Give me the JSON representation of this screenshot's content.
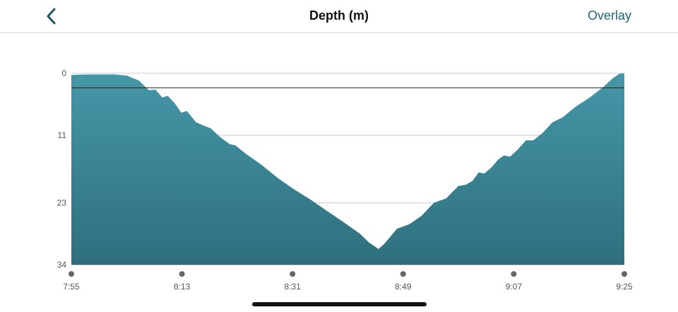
{
  "header": {
    "title": "Depth (m)",
    "overlay_label": "Overlay",
    "back_icon": "chevron-left-icon"
  },
  "colors": {
    "fill_top": "#4597a8",
    "fill_bottom": "#2f6f7d",
    "accent": "#1f6472"
  },
  "chart_data": {
    "type": "area",
    "title": "Depth (m)",
    "y_inverted": true,
    "ylim": [
      0,
      34
    ],
    "y_ticks": [
      "0",
      "11",
      "23",
      "34"
    ],
    "y_tick_values": [
      0,
      11,
      23,
      34
    ],
    "x_ticks": [
      "7:55",
      "8:13",
      "8:31",
      "8:49",
      "9:07",
      "9:25"
    ],
    "x_range_minutes": [
      0,
      90
    ],
    "reference_line_depth": 2.6,
    "grid": true,
    "series": [
      {
        "values": [
          {
            "x": 0.0,
            "y": 0.3
          },
          {
            "x": 3.0,
            "y": 0.2
          },
          {
            "x": 7.0,
            "y": 0.2
          },
          {
            "x": 9.0,
            "y": 0.4
          },
          {
            "x": 11.0,
            "y": 1.3
          },
          {
            "x": 12.6,
            "y": 3.0
          },
          {
            "x": 13.7,
            "y": 2.9
          },
          {
            "x": 14.8,
            "y": 4.3
          },
          {
            "x": 15.7,
            "y": 4.0
          },
          {
            "x": 16.8,
            "y": 5.3
          },
          {
            "x": 17.9,
            "y": 7.0
          },
          {
            "x": 18.8,
            "y": 6.7
          },
          {
            "x": 20.3,
            "y": 8.7
          },
          {
            "x": 21.8,
            "y": 9.4
          },
          {
            "x": 22.7,
            "y": 9.8
          },
          {
            "x": 24.3,
            "y": 11.4
          },
          {
            "x": 25.8,
            "y": 12.6
          },
          {
            "x": 26.7,
            "y": 12.8
          },
          {
            "x": 28.4,
            "y": 14.3
          },
          {
            "x": 30.9,
            "y": 16.2
          },
          {
            "x": 33.6,
            "y": 18.6
          },
          {
            "x": 36.1,
            "y": 20.5
          },
          {
            "x": 38.9,
            "y": 22.4
          },
          {
            "x": 41.7,
            "y": 24.5
          },
          {
            "x": 44.4,
            "y": 26.5
          },
          {
            "x": 47.0,
            "y": 28.5
          },
          {
            "x": 48.4,
            "y": 30.0
          },
          {
            "x": 50.0,
            "y": 31.2
          },
          {
            "x": 51.0,
            "y": 30.2
          },
          {
            "x": 53.0,
            "y": 27.6
          },
          {
            "x": 55.0,
            "y": 26.8
          },
          {
            "x": 57.0,
            "y": 25.3
          },
          {
            "x": 59.0,
            "y": 23.0
          },
          {
            "x": 61.0,
            "y": 22.2
          },
          {
            "x": 63.0,
            "y": 20.0
          },
          {
            "x": 64.2,
            "y": 19.8
          },
          {
            "x": 65.3,
            "y": 19.1
          },
          {
            "x": 66.3,
            "y": 17.6
          },
          {
            "x": 67.2,
            "y": 17.8
          },
          {
            "x": 68.3,
            "y": 16.8
          },
          {
            "x": 69.5,
            "y": 15.3
          },
          {
            "x": 70.4,
            "y": 14.6
          },
          {
            "x": 71.4,
            "y": 14.8
          },
          {
            "x": 72.5,
            "y": 13.7
          },
          {
            "x": 74.0,
            "y": 11.9
          },
          {
            "x": 75.2,
            "y": 11.9
          },
          {
            "x": 76.7,
            "y": 10.6
          },
          {
            "x": 78.3,
            "y": 8.7
          },
          {
            "x": 80.0,
            "y": 7.8
          },
          {
            "x": 82.0,
            "y": 6.0
          },
          {
            "x": 84.5,
            "y": 4.2
          },
          {
            "x": 86.5,
            "y": 2.5
          },
          {
            "x": 88.1,
            "y": 0.9
          },
          {
            "x": 89.2,
            "y": 0.1
          },
          {
            "x": 90.0,
            "y": 0.0
          }
        ]
      }
    ]
  }
}
